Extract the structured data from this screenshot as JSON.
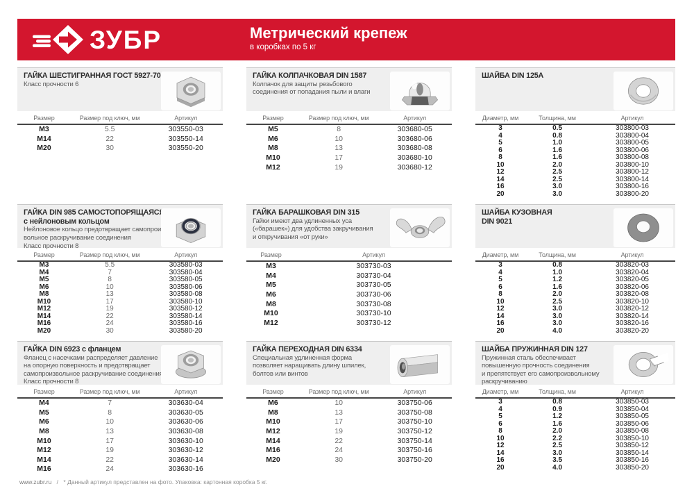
{
  "header": {
    "brand": "ЗУБР",
    "title": "Метрический крепеж",
    "subtitle": "в коробках по 5 кг",
    "brand_color": "#d3162e"
  },
  "sections": [
    {
      "id": "hex-nut-gost-5927-70",
      "title_lines": [
        "ГАЙКА ШЕСТИГРАННАЯ ГОСТ 5927-70"
      ],
      "description": [
        "Класс прочности 6"
      ],
      "icon": "hex-nut",
      "columns": [
        "Размер",
        "Размер под ключ, мм",
        "Артикул"
      ],
      "rows": [
        [
          "M3",
          "5.5",
          "303550-03"
        ],
        [
          "M14",
          "22",
          "303550-14"
        ],
        [
          "M20",
          "30",
          "303550-20"
        ]
      ]
    },
    {
      "id": "cap-nut-din-1587",
      "title_lines": [
        "ГАЙКА КОЛПАЧКОВАЯ DIN 1587"
      ],
      "description": [
        "Колпачок для защиты резьбового",
        "соединения от попадания пыли и влаги"
      ],
      "icon": "cap-nut",
      "columns": [
        "Размер",
        "Размер под ключ, мм",
        "Артикул"
      ],
      "rows": [
        [
          "M5",
          "8",
          "303680-05"
        ],
        [
          "M6",
          "10",
          "303680-06"
        ],
        [
          "M8",
          "13",
          "303680-08"
        ],
        [
          "M10",
          "17",
          "303680-10"
        ],
        [
          "M12",
          "19",
          "303680-12"
        ]
      ]
    },
    {
      "id": "washer-din-125a",
      "title_lines": [
        "ШАЙБА DIN 125A"
      ],
      "description": [],
      "icon": "washer",
      "columns": [
        "Диаметр, мм",
        "Толщина, мм",
        "Артикул"
      ],
      "rows": [
        [
          "3",
          "0.5",
          "303800-03"
        ],
        [
          "4",
          "0.8",
          "303800-04"
        ],
        [
          "5",
          "1.0",
          "303800-05"
        ],
        [
          "6",
          "1.6",
          "303800-06"
        ],
        [
          "8",
          "1.6",
          "303800-08"
        ],
        [
          "10",
          "2.0",
          "303800-10"
        ],
        [
          "12",
          "2.5",
          "303800-12"
        ],
        [
          "14",
          "2.5",
          "303800-14"
        ],
        [
          "16",
          "3.0",
          "303800-16"
        ],
        [
          "20",
          "3.0",
          "303800-20"
        ]
      ]
    },
    {
      "id": "lock-nut-din-985",
      "title_lines": [
        "ГАЙКА DIN 985 САМОСТОПОРЯЩАЯСЯ,",
        "с нейлоновым кольцом"
      ],
      "description": [
        "Нейлоновое кольцо предотвращает самопроиз-",
        "вольное раскручивание соединения",
        "Класс прочности 8"
      ],
      "icon": "lock-nut",
      "columns": [
        "Размер",
        "Размер под ключ, мм",
        "Артикул"
      ],
      "rows": [
        [
          "M3",
          "5.5",
          "303580-03"
        ],
        [
          "M4",
          "7",
          "303580-04"
        ],
        [
          "M5",
          "8",
          "303580-05"
        ],
        [
          "M6",
          "10",
          "303580-06"
        ],
        [
          "M8",
          "13",
          "303580-08"
        ],
        [
          "M10",
          "17",
          "303580-10"
        ],
        [
          "M12",
          "19",
          "303580-12"
        ],
        [
          "M14",
          "22",
          "303580-14"
        ],
        [
          "M16",
          "24",
          "303580-16"
        ],
        [
          "M20",
          "30",
          "303580-20"
        ]
      ]
    },
    {
      "id": "wing-nut-din-315",
      "title_lines": [
        "ГАЙКА БАРАШКОВАЯ DIN 315"
      ],
      "description": [
        "Гайки имеют два удлиненных уса",
        "(«барашек») для удобства закручивания",
        "и откручивания «от руки»"
      ],
      "icon": "wing-nut",
      "columns": [
        "Размер",
        "Артикул"
      ],
      "rows": [
        [
          "M3",
          "303730-03"
        ],
        [
          "M4",
          "303730-04"
        ],
        [
          "M5",
          "303730-05"
        ],
        [
          "M6",
          "303730-06"
        ],
        [
          "M8",
          "303730-08"
        ],
        [
          "M10",
          "303730-10"
        ],
        [
          "M12",
          "303730-12"
        ]
      ]
    },
    {
      "id": "body-washer-din-9021",
      "title_lines": [
        "ШАЙБА КУЗОВНАЯ",
        "DIN 9021"
      ],
      "description": [],
      "icon": "body-washer",
      "columns": [
        "Диаметр, мм",
        "Толщина, мм",
        "Артикул"
      ],
      "rows": [
        [
          "3",
          "0.8",
          "303820-03"
        ],
        [
          "4",
          "1.0",
          "303820-04"
        ],
        [
          "5",
          "1.2",
          "303820-05"
        ],
        [
          "6",
          "1.6",
          "303820-06"
        ],
        [
          "8",
          "2.0",
          "303820-08"
        ],
        [
          "10",
          "2.5",
          "303820-10"
        ],
        [
          "12",
          "3.0",
          "303820-12"
        ],
        [
          "14",
          "3.0",
          "303820-14"
        ],
        [
          "16",
          "3.0",
          "303820-16"
        ],
        [
          "20",
          "4.0",
          "303820-20"
        ]
      ]
    },
    {
      "id": "flange-nut-din-6923",
      "title_lines": [
        "ГАЙКА DIN 6923 с фланцем"
      ],
      "description": [
        "Фланец с насечками распределяет давление",
        "на опорную поверхность и предотвращает",
        "самопроизвольное раскручивание соединения",
        "Класс прочности 8"
      ],
      "icon": "flange-nut",
      "columns": [
        "Размер",
        "Размер под ключ, мм",
        "Артикул"
      ],
      "rows": [
        [
          "M4",
          "7",
          "303630-04"
        ],
        [
          "M5",
          "8",
          "303630-05"
        ],
        [
          "M6",
          "10",
          "303630-06"
        ],
        [
          "M8",
          "13",
          "303630-08"
        ],
        [
          "M10",
          "17",
          "303630-10"
        ],
        [
          "M12",
          "19",
          "303630-12"
        ],
        [
          "M14",
          "22",
          "303630-14"
        ],
        [
          "M16",
          "24",
          "303630-16"
        ]
      ]
    },
    {
      "id": "coupling-nut-din-6334",
      "title_lines": [
        "ГАЙКА ПЕРЕХОДНАЯ DIN 6334"
      ],
      "description": [
        "Специальная удлиненная форма",
        "позволяет наращивать длину шпилек,",
        "болтов или винтов"
      ],
      "icon": "coupling-nut",
      "columns": [
        "Размер",
        "Размер под ключ, мм",
        "Артикул"
      ],
      "rows": [
        [
          "M6",
          "10",
          "303750-06"
        ],
        [
          "M8",
          "13",
          "303750-08"
        ],
        [
          "M10",
          "17",
          "303750-10"
        ],
        [
          "M12",
          "19",
          "303750-12"
        ],
        [
          "M14",
          "22",
          "303750-14"
        ],
        [
          "M16",
          "24",
          "303750-16"
        ],
        [
          "M20",
          "30",
          "303750-20"
        ]
      ]
    },
    {
      "id": "spring-washer-din-127",
      "title_lines": [
        "ШАЙБА ПРУЖИННАЯ DIN 127"
      ],
      "description": [
        "Пружинная сталь обеспечивает",
        "повышенную прочность соединения",
        "и препятствует его самопроизвольному",
        "раскручиванию"
      ],
      "icon": "spring-washer",
      "columns": [
        "Диаметр, мм",
        "Толщина, мм",
        "Артикул"
      ],
      "rows": [
        [
          "3",
          "0.8",
          "303850-03"
        ],
        [
          "4",
          "0.9",
          "303850-04"
        ],
        [
          "5",
          "1.2",
          "303850-05"
        ],
        [
          "6",
          "1.6",
          "303850-06"
        ],
        [
          "8",
          "2.0",
          "303850-08"
        ],
        [
          "10",
          "2.2",
          "303850-10"
        ],
        [
          "12",
          "2.5",
          "303850-12"
        ],
        [
          "14",
          "3.0",
          "303850-14"
        ],
        [
          "16",
          "3.5",
          "303850-16"
        ],
        [
          "20",
          "4.0",
          "303850-20"
        ]
      ]
    }
  ],
  "footer": {
    "site": "www.zubr.ru",
    "separator": "/",
    "note": "* Данный артикул представлен на фото. Упаковка: картонная коробка 5 кг."
  }
}
